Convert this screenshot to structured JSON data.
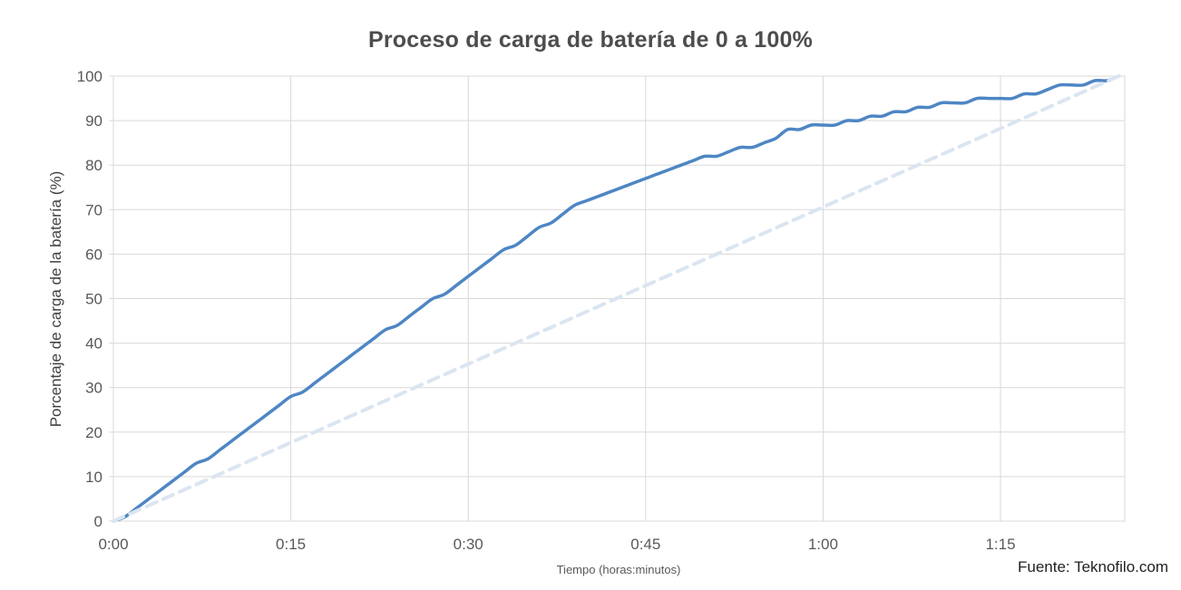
{
  "header": {
    "title": "Proceso de carga de batería de 0 a 100%"
  },
  "footer": {
    "source": "Fuente: Teknofilo.com"
  },
  "chart_data": {
    "type": "line",
    "title": "Proceso de carga de batería de 0 a 100%",
    "xlabel": "Tiempo (horas:minutos)",
    "ylabel": "Porcentaje de carga de la batería (%)",
    "xlim_minutes": [
      0,
      85.5
    ],
    "ylim": [
      0,
      100
    ],
    "grid": true,
    "legend_position": "none",
    "x_ticks": [
      {
        "minute": 0,
        "label": "0:00"
      },
      {
        "minute": 15,
        "label": "0:15"
      },
      {
        "minute": 30,
        "label": "0:30"
      },
      {
        "minute": 45,
        "label": "0:45"
      },
      {
        "minute": 60,
        "label": "1:00"
      },
      {
        "minute": 75,
        "label": "1:15"
      }
    ],
    "y_ticks": [
      0,
      10,
      20,
      30,
      40,
      50,
      60,
      70,
      80,
      90,
      100
    ],
    "series": [
      {
        "name": "charge_curve",
        "style": "solid",
        "color": "#4e86c4",
        "x_minutes": [
          0,
          1,
          2,
          3,
          4,
          5,
          6,
          7,
          8,
          9,
          10,
          11,
          12,
          13,
          14,
          15,
          16,
          17,
          18,
          19,
          20,
          21,
          22,
          23,
          24,
          25,
          26,
          27,
          28,
          29,
          30,
          31,
          32,
          33,
          34,
          35,
          36,
          37,
          38,
          39,
          40,
          41,
          42,
          43,
          44,
          45,
          46,
          47,
          48,
          49,
          50,
          51,
          52,
          53,
          54,
          55,
          56,
          57,
          58,
          59,
          60,
          61,
          62,
          63,
          64,
          65,
          66,
          67,
          68,
          69,
          70,
          71,
          72,
          73,
          74,
          75,
          76,
          77,
          78,
          79,
          80,
          81,
          82,
          83,
          84,
          85
        ],
        "y_percent": [
          0,
          1,
          3,
          5,
          7,
          9,
          11,
          13,
          14,
          16,
          18,
          20,
          22,
          24,
          26,
          28,
          29,
          31,
          33,
          35,
          37,
          39,
          41,
          43,
          44,
          46,
          48,
          50,
          51,
          53,
          55,
          57,
          59,
          61,
          62,
          64,
          66,
          67,
          69,
          71,
          72,
          73,
          74,
          75,
          76,
          77,
          78,
          79,
          80,
          81,
          82,
          82,
          83,
          84,
          84,
          85,
          86,
          88,
          88,
          89,
          89,
          89,
          90,
          90,
          91,
          91,
          92,
          92,
          93,
          93,
          94,
          94,
          94,
          95,
          95,
          95,
          95,
          96,
          96,
          97,
          98,
          98,
          98,
          99,
          99,
          100
        ]
      },
      {
        "name": "linear_reference",
        "style": "dashed",
        "color": "#dbe5f1",
        "x_minutes": [
          0,
          85
        ],
        "y_percent": [
          0,
          100
        ]
      }
    ],
    "colors": {
      "grid": "#d9d9d9",
      "tick_text": "#595959",
      "title_text": "#4d4d4d",
      "solid_line": "#4e86c4",
      "dashed_line": "#dbe5f1"
    }
  }
}
